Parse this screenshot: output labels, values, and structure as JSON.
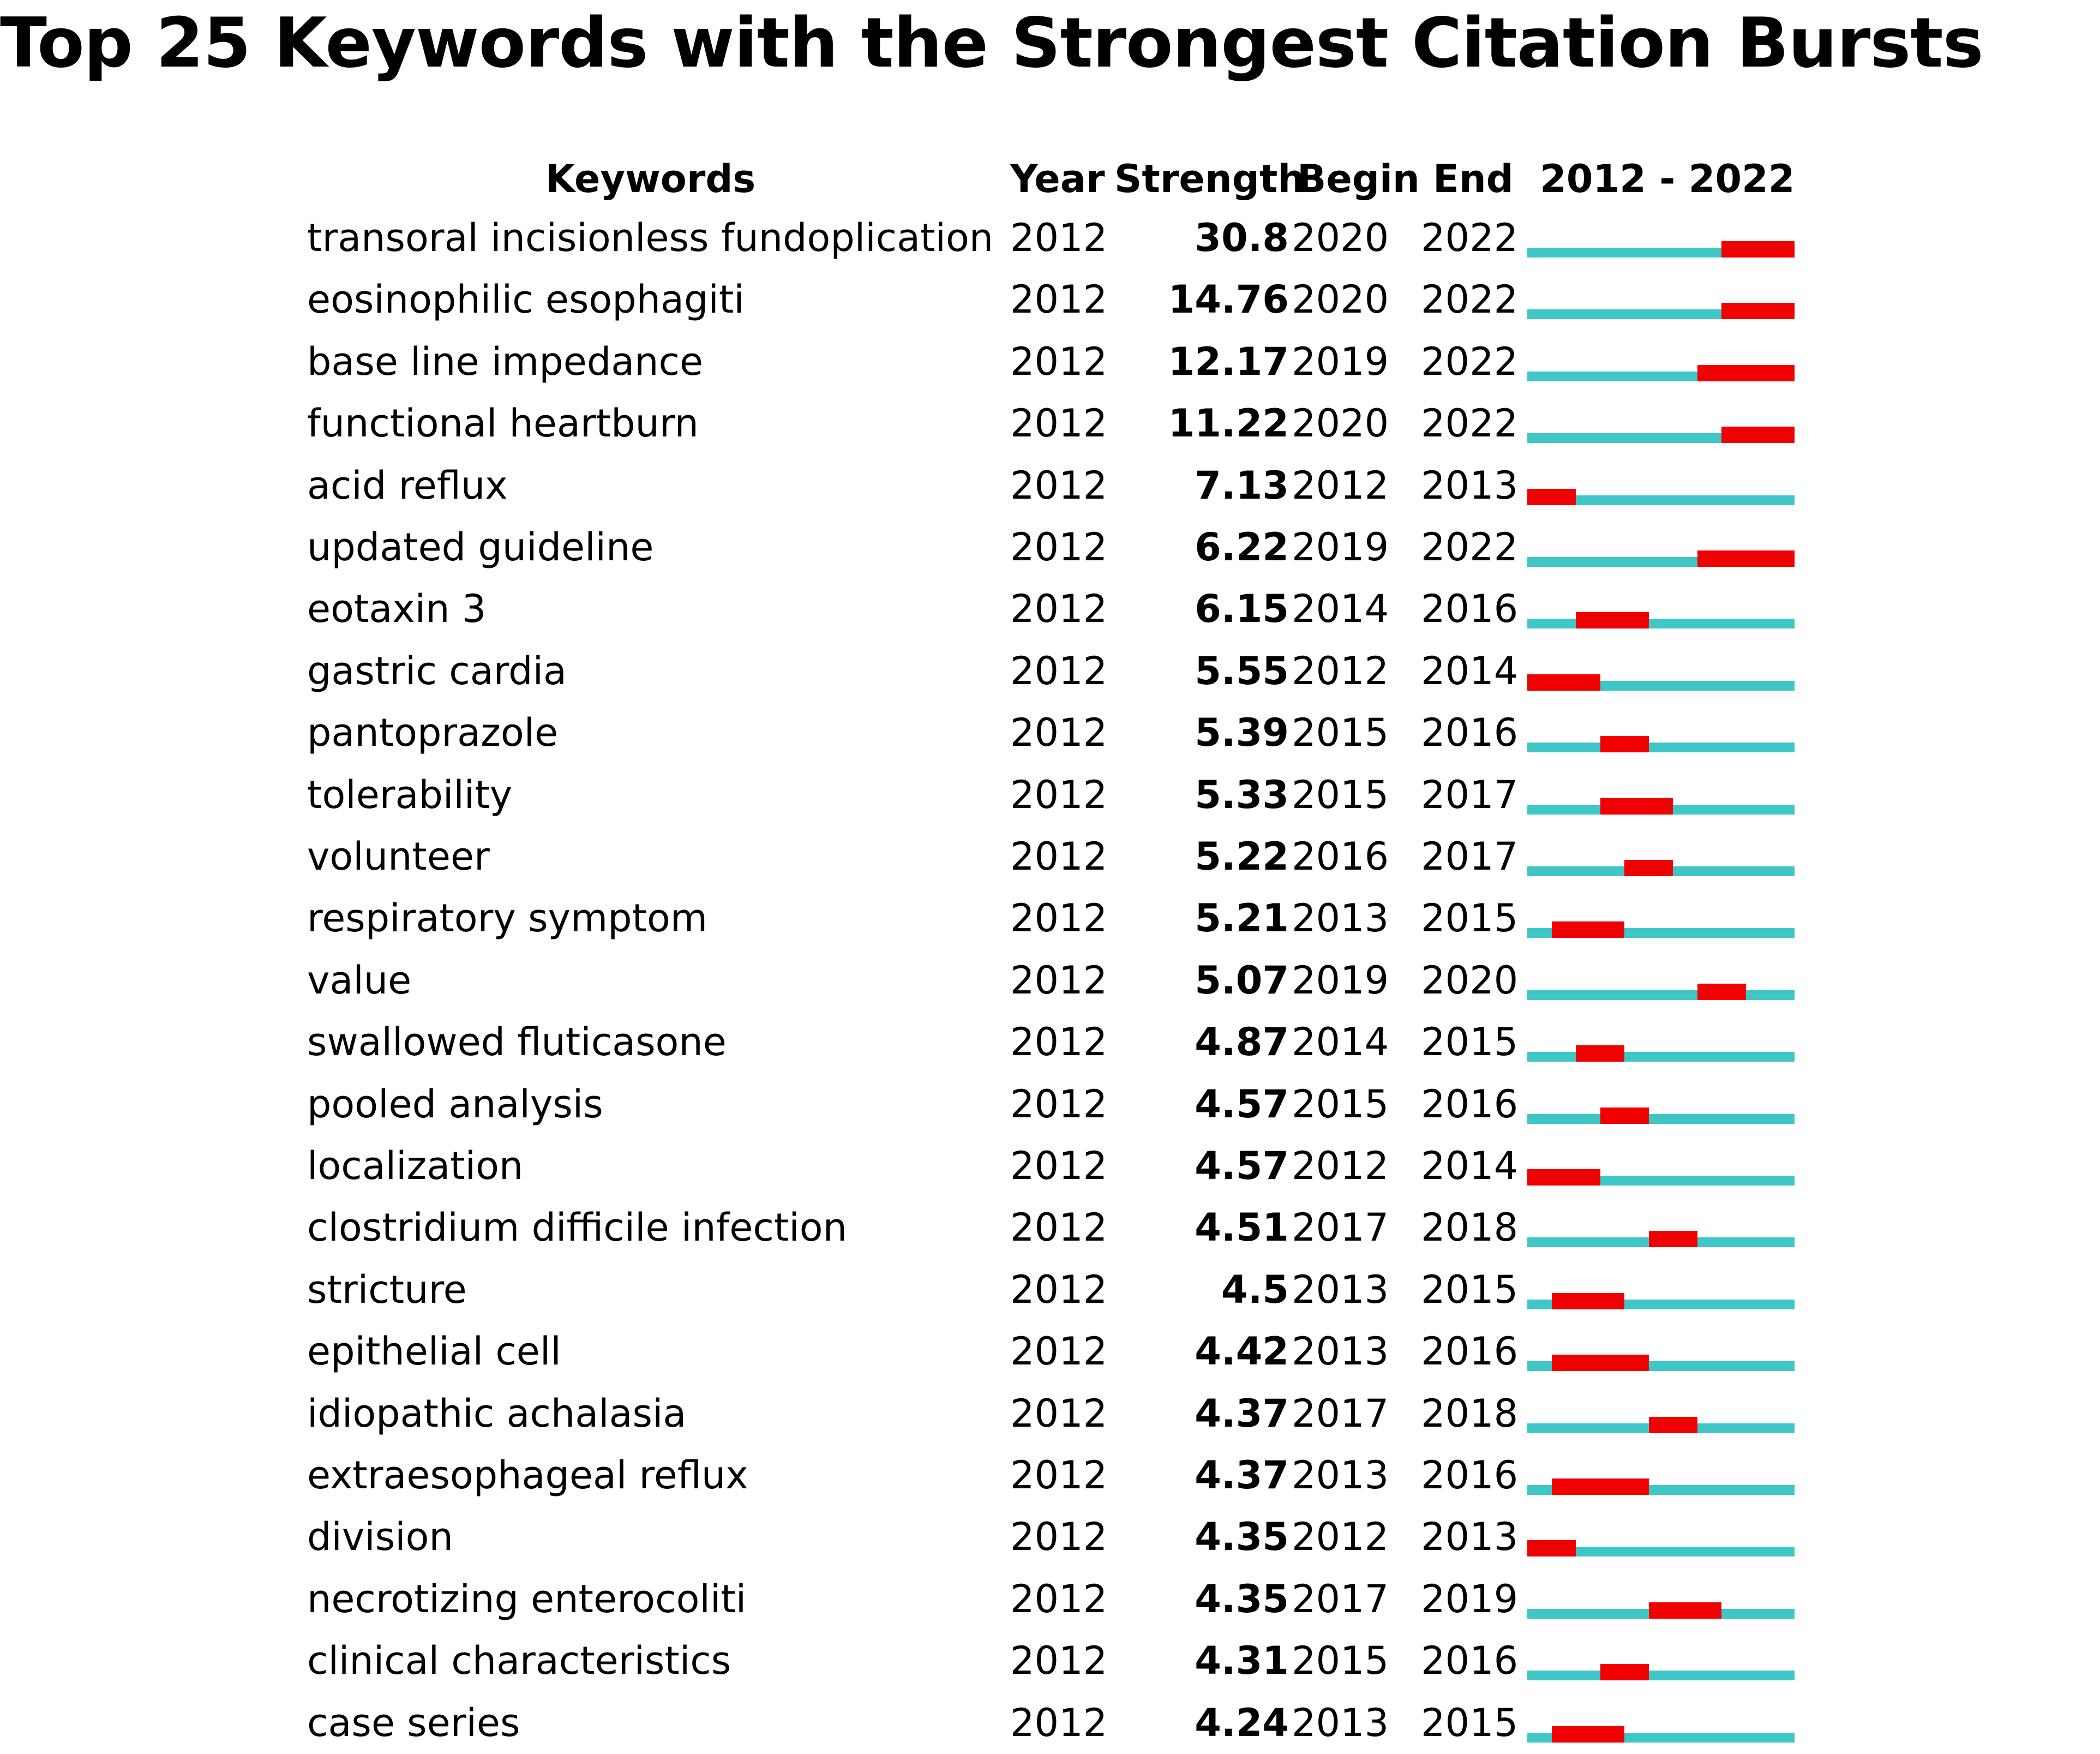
{
  "chart_data": {
    "type": "table",
    "title": "Top 25 Keywords with the Strongest Citation Bursts",
    "columns": [
      "Keywords",
      "Year",
      "Strength",
      "Begin",
      "End",
      "2012 - 2022"
    ],
    "year_range": [
      2012,
      2022
    ],
    "colors": {
      "base": "#3fc7c7",
      "burst": "#f00000"
    },
    "rows": [
      {
        "keyword": "transoral incisionless fundoplication",
        "year": "2012",
        "strength": "30.8",
        "begin": "2020",
        "end": "2022"
      },
      {
        "keyword": "eosinophilic esophagiti",
        "year": "2012",
        "strength": "14.76",
        "begin": "2020",
        "end": "2022"
      },
      {
        "keyword": "base line impedance",
        "year": "2012",
        "strength": "12.17",
        "begin": "2019",
        "end": "2022"
      },
      {
        "keyword": "functional heartburn",
        "year": "2012",
        "strength": "11.22",
        "begin": "2020",
        "end": "2022"
      },
      {
        "keyword": "acid reflux",
        "year": "2012",
        "strength": "7.13",
        "begin": "2012",
        "end": "2013"
      },
      {
        "keyword": "updated guideline",
        "year": "2012",
        "strength": "6.22",
        "begin": "2019",
        "end": "2022"
      },
      {
        "keyword": "eotaxin 3",
        "year": "2012",
        "strength": "6.15",
        "begin": "2014",
        "end": "2016"
      },
      {
        "keyword": "gastric cardia",
        "year": "2012",
        "strength": "5.55",
        "begin": "2012",
        "end": "2014"
      },
      {
        "keyword": "pantoprazole",
        "year": "2012",
        "strength": "5.39",
        "begin": "2015",
        "end": "2016"
      },
      {
        "keyword": "tolerability",
        "year": "2012",
        "strength": "5.33",
        "begin": "2015",
        "end": "2017"
      },
      {
        "keyword": "volunteer",
        "year": "2012",
        "strength": "5.22",
        "begin": "2016",
        "end": "2017"
      },
      {
        "keyword": "respiratory symptom",
        "year": "2012",
        "strength": "5.21",
        "begin": "2013",
        "end": "2015"
      },
      {
        "keyword": "value",
        "year": "2012",
        "strength": "5.07",
        "begin": "2019",
        "end": "2020"
      },
      {
        "keyword": "swallowed fluticasone",
        "year": "2012",
        "strength": "4.87",
        "begin": "2014",
        "end": "2015"
      },
      {
        "keyword": "pooled analysis",
        "year": "2012",
        "strength": "4.57",
        "begin": "2015",
        "end": "2016"
      },
      {
        "keyword": "localization",
        "year": "2012",
        "strength": "4.57",
        "begin": "2012",
        "end": "2014"
      },
      {
        "keyword": "clostridium difficile infection",
        "year": "2012",
        "strength": "4.51",
        "begin": "2017",
        "end": "2018"
      },
      {
        "keyword": "stricture",
        "year": "2012",
        "strength": "4.5",
        "begin": "2013",
        "end": "2015"
      },
      {
        "keyword": "epithelial cell",
        "year": "2012",
        "strength": "4.42",
        "begin": "2013",
        "end": "2016"
      },
      {
        "keyword": "idiopathic achalasia",
        "year": "2012",
        "strength": "4.37",
        "begin": "2017",
        "end": "2018"
      },
      {
        "keyword": "extraesophageal reflux",
        "year": "2012",
        "strength": "4.37",
        "begin": "2013",
        "end": "2016"
      },
      {
        "keyword": "division",
        "year": "2012",
        "strength": "4.35",
        "begin": "2012",
        "end": "2013"
      },
      {
        "keyword": "necrotizing enterocoliti",
        "year": "2012",
        "strength": "4.35",
        "begin": "2017",
        "end": "2019"
      },
      {
        "keyword": "clinical characteristics",
        "year": "2012",
        "strength": "4.31",
        "begin": "2015",
        "end": "2016"
      },
      {
        "keyword": "case series",
        "year": "2012",
        "strength": "4.24",
        "begin": "2013",
        "end": "2015"
      }
    ]
  }
}
